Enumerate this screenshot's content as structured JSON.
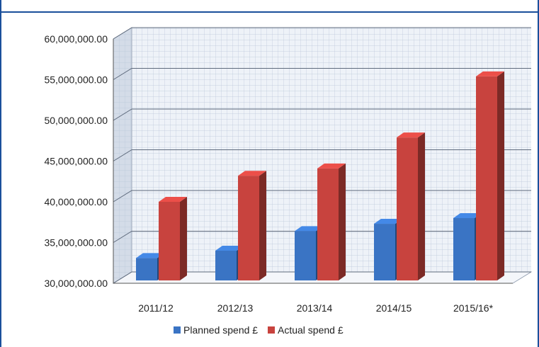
{
  "chart_data": {
    "type": "bar",
    "categories": [
      "2011/12",
      "2012/13",
      "2013/14",
      "2014/15",
      "2015/16*"
    ],
    "series": [
      {
        "name": "Planned spend £",
        "color": "#3a74c4",
        "values": [
          33100000,
          34000000,
          36400000,
          37300000,
          38000000
        ]
      },
      {
        "name": "Actual spend £",
        "color": "#c8433e",
        "values": [
          40000000,
          43200000,
          44100000,
          47900000,
          55400000
        ]
      }
    ],
    "ylim": [
      30000000,
      60000000
    ],
    "yticks": [
      "30,000,000.00",
      "35,000,000.00",
      "40,000,000.00",
      "45,000,000.00",
      "50,000,000.00",
      "55,000,000.00",
      "60,000,000.00"
    ],
    "title": "",
    "xlabel": "",
    "ylabel": "",
    "grid": true,
    "legend": "bottom",
    "style": "3d-clustered-column"
  }
}
